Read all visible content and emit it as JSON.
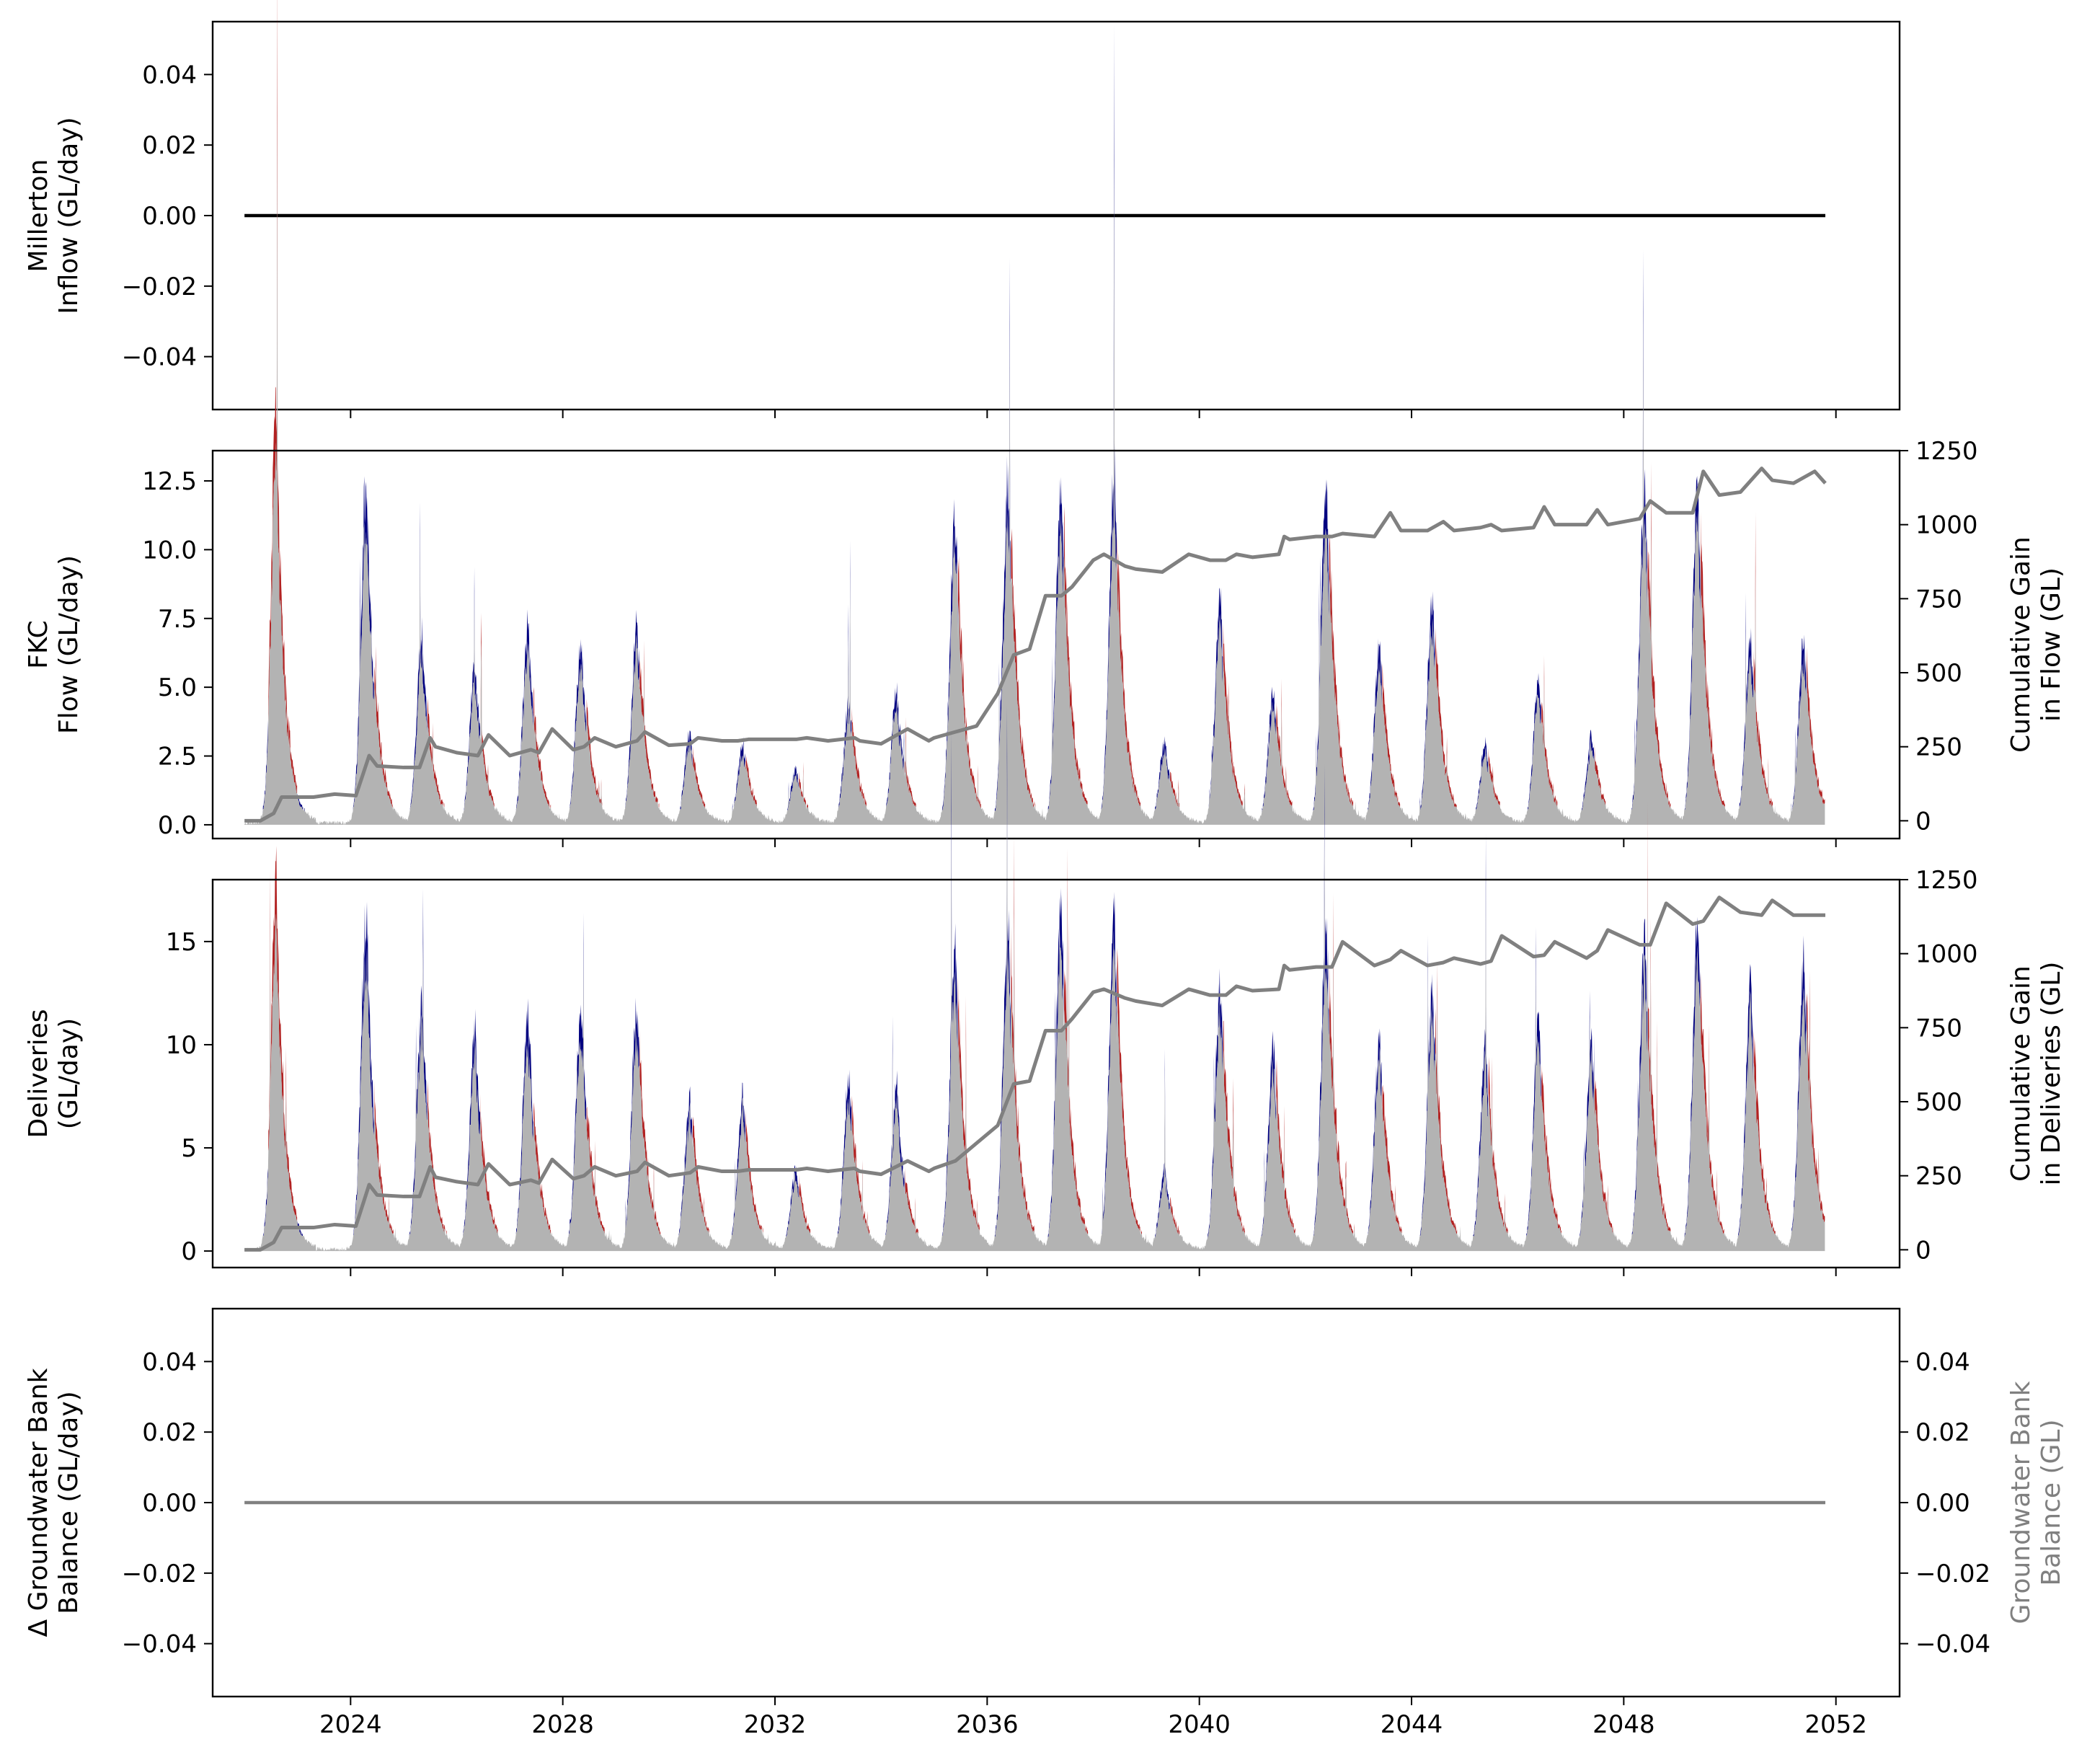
{
  "colors": {
    "fill": "#b3b3b3",
    "gain": "#000080",
    "loss": "#b22222",
    "cumulative": "#808080",
    "inflow": "#000000",
    "bank_label": "#808080"
  },
  "x_axis": {
    "range": [
      2021.4,
      2053.2
    ],
    "tick_values": [
      2024,
      2028,
      2032,
      2036,
      2040,
      2044,
      2048,
      2052
    ],
    "tick_labels": [
      "2024",
      "2028",
      "2032",
      "2036",
      "2040",
      "2044",
      "2048",
      "2052"
    ]
  },
  "chart_data": [
    {
      "type": "line",
      "panel": "millerton",
      "ylabel": [
        "Millerton",
        "Inflow (GL/day)"
      ],
      "ylim": [
        -0.055,
        0.055
      ],
      "yticks": [
        -0.04,
        -0.02,
        0.0,
        0.02,
        0.04
      ],
      "ytick_labels": [
        "−0.04",
        "−0.02",
        "0.00",
        "0.02",
        "0.04"
      ],
      "series": [
        {
          "x": [
            2022.0,
            2051.8
          ],
          "y": [
            0,
            0
          ]
        }
      ]
    },
    {
      "type": "area",
      "panel": "fkc",
      "ylabel": [
        "FKC",
        "Flow (GL/day)"
      ],
      "y2label": [
        "Cumulative Gain",
        "in Flow (GL)"
      ],
      "ylim": [
        -0.5,
        13.6
      ],
      "yticks": [
        0.0,
        2.5,
        5.0,
        7.5,
        10.0,
        12.5
      ],
      "ytick_labels": [
        "0.0",
        "2.5",
        "5.0",
        "7.5",
        "10.0",
        "12.5"
      ],
      "y2lim": [
        -60,
        1250
      ],
      "y2ticks": [
        0,
        250,
        500,
        750,
        1000,
        1250
      ],
      "y2tick_labels": [
        "0",
        "250",
        "500",
        "750",
        "1000",
        "1250"
      ],
      "cumulative": {
        "x": [
          2022.0,
          2022.3,
          2022.55,
          2022.7,
          2023.3,
          2023.7,
          2024.1,
          2024.35,
          2024.5,
          2025.0,
          2025.3,
          2025.5,
          2025.6,
          2026.0,
          2026.4,
          2026.6,
          2027.0,
          2027.4,
          2027.55,
          2027.8,
          2028.2,
          2028.4,
          2028.6,
          2029.0,
          2029.4,
          2029.55,
          2030.0,
          2030.4,
          2030.55,
          2031.0,
          2031.3,
          2031.5,
          2032.0,
          2032.4,
          2032.6,
          2033.0,
          2033.5,
          2033.6,
          2034.0,
          2034.5,
          2034.9,
          2035.0,
          2035.4,
          2035.8,
          2036.2,
          2036.5,
          2036.8,
          2037.1,
          2037.4,
          2037.6,
          2038.0,
          2038.2,
          2038.6,
          2038.8,
          2039.3,
          2039.8,
          2040.2,
          2040.5,
          2040.7,
          2041.0,
          2041.5,
          2041.6,
          2041.7,
          2042.2,
          2042.5,
          2042.7,
          2043.3,
          2043.6,
          2043.8,
          2044.3,
          2044.6,
          2044.8,
          2045.3,
          2045.5,
          2045.7,
          2046.3,
          2046.5,
          2046.7,
          2047.3,
          2047.5,
          2047.7,
          2048.3,
          2048.5,
          2048.8,
          2049.3,
          2049.5,
          2049.8,
          2050.2,
          2050.6,
          2050.8,
          2051.2,
          2051.6,
          2051.8
        ],
        "y": [
          0,
          0,
          25,
          80,
          80,
          90,
          85,
          220,
          185,
          180,
          180,
          280,
          250,
          230,
          220,
          290,
          220,
          240,
          230,
          310,
          240,
          250,
          280,
          250,
          270,
          300,
          255,
          260,
          280,
          270,
          270,
          275,
          275,
          275,
          280,
          270,
          280,
          270,
          260,
          310,
          270,
          280,
          300,
          320,
          430,
          560,
          580,
          760,
          760,
          790,
          880,
          900,
          860,
          850,
          840,
          900,
          880,
          880,
          900,
          890,
          900,
          960,
          950,
          960,
          960,
          970,
          960,
          1040,
          980,
          980,
          1010,
          980,
          990,
          1000,
          980,
          990,
          1060,
          1000,
          1000,
          1050,
          1000,
          1020,
          1080,
          1040,
          1040,
          1180,
          1100,
          1110,
          1190,
          1150,
          1140,
          1180,
          1140
        ]
      },
      "peaks": [
        {
          "x": 2022.6,
          "h": 12.9
        },
        {
          "x": 2024.3,
          "h": 12.9
        },
        {
          "x": 2025.35,
          "h": 7.0
        },
        {
          "x": 2026.35,
          "h": 6.0
        },
        {
          "x": 2027.35,
          "h": 7.3
        },
        {
          "x": 2028.35,
          "h": 6.9
        },
        {
          "x": 2029.4,
          "h": 7.5
        },
        {
          "x": 2030.4,
          "h": 3.3
        },
        {
          "x": 2031.4,
          "h": 3.0
        },
        {
          "x": 2032.4,
          "h": 2.0
        },
        {
          "x": 2033.4,
          "h": 4.6
        },
        {
          "x": 2034.3,
          "h": 5.0
        },
        {
          "x": 2035.4,
          "h": 11.5
        },
        {
          "x": 2036.4,
          "h": 12.9
        },
        {
          "x": 2037.4,
          "h": 12.9
        },
        {
          "x": 2038.4,
          "h": 12.9
        },
        {
          "x": 2039.35,
          "h": 3.0
        },
        {
          "x": 2040.4,
          "h": 8.2
        },
        {
          "x": 2041.4,
          "h": 5.0
        },
        {
          "x": 2042.4,
          "h": 12.8
        },
        {
          "x": 2043.4,
          "h": 6.6
        },
        {
          "x": 2044.4,
          "h": 8.5
        },
        {
          "x": 2045.4,
          "h": 3.0
        },
        {
          "x": 2046.4,
          "h": 5.3
        },
        {
          "x": 2047.4,
          "h": 3.2
        },
        {
          "x": 2048.4,
          "h": 12.5
        },
        {
          "x": 2049.4,
          "h": 12.8
        },
        {
          "x": 2050.4,
          "h": 7.0
        },
        {
          "x": 2051.4,
          "h": 7.0
        }
      ]
    },
    {
      "type": "area",
      "panel": "deliveries",
      "ylabel": [
        "Deliveries",
        "(GL/day)"
      ],
      "y2label": [
        "Cumulative Gain",
        "in Deliveries (GL)"
      ],
      "ylim": [
        -0.8,
        18.0
      ],
      "yticks": [
        0,
        5,
        10,
        15
      ],
      "ytick_labels": [
        "0",
        "5",
        "10",
        "15"
      ],
      "y2lim": [
        -60,
        1250
      ],
      "y2ticks": [
        0,
        250,
        500,
        750,
        1000,
        1250
      ],
      "y2tick_labels": [
        "0",
        "250",
        "500",
        "750",
        "1000",
        "1250"
      ],
      "cumulative": {
        "x": [
          2022.0,
          2022.3,
          2022.55,
          2022.7,
          2023.3,
          2023.7,
          2024.1,
          2024.35,
          2024.5,
          2025.0,
          2025.3,
          2025.5,
          2025.6,
          2026.0,
          2026.4,
          2026.6,
          2027.0,
          2027.4,
          2027.55,
          2027.8,
          2028.2,
          2028.4,
          2028.6,
          2029.0,
          2029.4,
          2029.55,
          2030.0,
          2030.4,
          2030.55,
          2031.0,
          2031.3,
          2031.5,
          2032.0,
          2032.4,
          2032.6,
          2033.0,
          2033.5,
          2033.6,
          2034.0,
          2034.5,
          2034.9,
          2035.0,
          2035.4,
          2035.8,
          2036.2,
          2036.5,
          2036.8,
          2037.1,
          2037.4,
          2037.6,
          2038.0,
          2038.2,
          2038.6,
          2038.8,
          2039.3,
          2039.8,
          2040.2,
          2040.5,
          2040.7,
          2041.0,
          2041.5,
          2041.6,
          2041.7,
          2042.2,
          2042.5,
          2042.7,
          2043.3,
          2043.6,
          2043.8,
          2044.3,
          2044.6,
          2044.8,
          2045.3,
          2045.5,
          2045.7,
          2046.3,
          2046.5,
          2046.7,
          2047.3,
          2047.5,
          2047.7,
          2048.3,
          2048.5,
          2048.8,
          2049.3,
          2049.5,
          2049.8,
          2050.2,
          2050.6,
          2050.8,
          2051.2,
          2051.6,
          2051.8
        ],
        "y": [
          0,
          0,
          25,
          75,
          75,
          85,
          80,
          220,
          185,
          180,
          180,
          280,
          245,
          230,
          220,
          290,
          220,
          235,
          225,
          305,
          240,
          250,
          280,
          250,
          265,
          295,
          250,
          260,
          280,
          265,
          265,
          270,
          270,
          270,
          275,
          265,
          275,
          265,
          255,
          300,
          265,
          275,
          300,
          360,
          420,
          560,
          570,
          740,
          740,
          780,
          870,
          880,
          850,
          840,
          825,
          880,
          860,
          860,
          890,
          875,
          880,
          960,
          945,
          955,
          955,
          1040,
          960,
          980,
          1010,
          960,
          970,
          985,
          965,
          975,
          1060,
          990,
          995,
          1040,
          985,
          1010,
          1080,
          1030,
          1030,
          1170,
          1100,
          1110,
          1190,
          1140,
          1130,
          1180,
          1130,
          1130,
          1130
        ]
      },
      "peaks": [
        {
          "x": 2022.6,
          "h": 15.3
        },
        {
          "x": 2024.3,
          "h": 16.7
        },
        {
          "x": 2025.35,
          "h": 12.3
        },
        {
          "x": 2026.35,
          "h": 10.9
        },
        {
          "x": 2027.35,
          "h": 11.9
        },
        {
          "x": 2028.35,
          "h": 12.2
        },
        {
          "x": 2029.4,
          "h": 12.2
        },
        {
          "x": 2030.4,
          "h": 7.4
        },
        {
          "x": 2031.4,
          "h": 7.6
        },
        {
          "x": 2032.4,
          "h": 4.1
        },
        {
          "x": 2033.4,
          "h": 8.5
        },
        {
          "x": 2034.3,
          "h": 8.0
        },
        {
          "x": 2035.4,
          "h": 15.0
        },
        {
          "x": 2036.4,
          "h": 16.4
        },
        {
          "x": 2037.4,
          "h": 16.6
        },
        {
          "x": 2038.4,
          "h": 16.5
        },
        {
          "x": 2039.35,
          "h": 4.0
        },
        {
          "x": 2040.4,
          "h": 13.3
        },
        {
          "x": 2041.4,
          "h": 10.0
        },
        {
          "x": 2042.4,
          "h": 16.2
        },
        {
          "x": 2043.4,
          "h": 10.3
        },
        {
          "x": 2044.4,
          "h": 12.8
        },
        {
          "x": 2045.4,
          "h": 10.3
        },
        {
          "x": 2046.4,
          "h": 11.0
        },
        {
          "x": 2047.4,
          "h": 10.3
        },
        {
          "x": 2048.4,
          "h": 15.6
        },
        {
          "x": 2049.4,
          "h": 16.3
        },
        {
          "x": 2050.4,
          "h": 12.9
        },
        {
          "x": 2051.4,
          "h": 14.3
        }
      ]
    },
    {
      "type": "line",
      "panel": "groundwater",
      "ylabel": [
        "Δ Groundwater Bank",
        "Balance (GL/day)"
      ],
      "y2label": [
        "Groundwater Bank",
        "Balance (GL)"
      ],
      "ylim": [
        -0.055,
        0.055
      ],
      "yticks": [
        -0.04,
        -0.02,
        0.0,
        0.02,
        0.04
      ],
      "ytick_labels": [
        "−0.04",
        "−0.02",
        "0.00",
        "0.02",
        "0.04"
      ],
      "y2lim": [
        -0.055,
        0.055
      ],
      "y2ticks": [
        -0.04,
        -0.02,
        0.0,
        0.02,
        0.04
      ],
      "y2tick_labels": [
        "−0.04",
        "−0.02",
        "0.00",
        "0.02",
        "0.04"
      ],
      "series": [
        {
          "x": [
            2022.0,
            2051.8
          ],
          "y": [
            0,
            0
          ]
        }
      ]
    }
  ]
}
